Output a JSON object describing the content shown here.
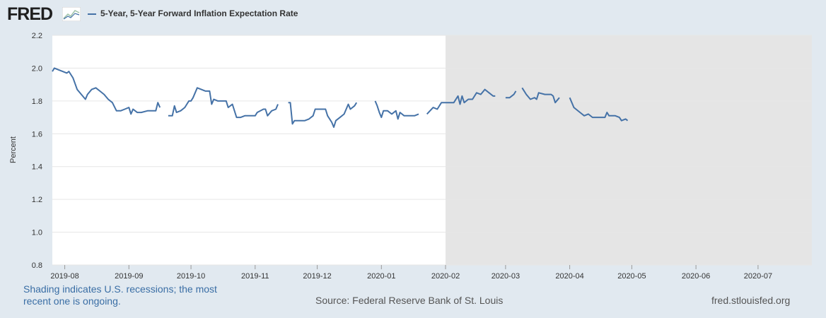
{
  "header": {
    "logo_text": "FRED",
    "logo_icon": "fred-graph-icon"
  },
  "footer": {
    "shading_note": "Shading indicates U.S. recessions; the most recent one is ongoing.",
    "source": "Source: Federal Reserve Bank of St. Louis",
    "url": "fred.stlouisfed.org"
  },
  "colors": {
    "series": "#4572a7",
    "recession_shade": "#e5e5e5",
    "background": "#e1e9f0",
    "plot_background": "#ffffff",
    "gridline": "#e6e6e6",
    "link_text": "#3a6ea5"
  },
  "chart_data": {
    "type": "line",
    "title": "",
    "xlabel": "",
    "ylabel": "Percent",
    "ylim": [
      0.8,
      2.2
    ],
    "yticks": [
      "0.8",
      "1.0",
      "1.2",
      "1.4",
      "1.6",
      "1.8",
      "2.0",
      "2.2"
    ],
    "xlim": [
      "2019-07-26",
      "2020-07-27"
    ],
    "xticks": [
      {
        "date": "2019-08-01",
        "label": "2019-08"
      },
      {
        "date": "2019-09-01",
        "label": "2019-09"
      },
      {
        "date": "2019-10-01",
        "label": "2019-10"
      },
      {
        "date": "2019-11-01",
        "label": "2019-11"
      },
      {
        "date": "2019-12-01",
        "label": "2019-12"
      },
      {
        "date": "2020-01-01",
        "label": "2020-01"
      },
      {
        "date": "2020-02-01",
        "label": "2020-02"
      },
      {
        "date": "2020-03-01",
        "label": "2020-03"
      },
      {
        "date": "2020-04-01",
        "label": "2020-04"
      },
      {
        "date": "2020-05-01",
        "label": "2020-05"
      },
      {
        "date": "2020-06-01",
        "label": "2020-06"
      },
      {
        "date": "2020-07-01",
        "label": "2020-07"
      }
    ],
    "grid": true,
    "recession_shading": [
      {
        "start": "2020-02-01",
        "end": "2020-07-27"
      }
    ],
    "series": [
      {
        "name": "5-Year, 5-Year Forward Inflation Expectation Rate",
        "segments": [
          [
            [
              "2019-07-26",
              1.98
            ],
            [
              "2019-07-27",
              2.0
            ],
            [
              "2019-07-29",
              1.99
            ],
            [
              "2019-07-31",
              1.98
            ],
            [
              "2019-08-02",
              1.97
            ],
            [
              "2019-08-03",
              1.98
            ],
            [
              "2019-08-05",
              1.94
            ],
            [
              "2019-08-07",
              1.87
            ],
            [
              "2019-08-09",
              1.84
            ],
            [
              "2019-08-11",
              1.81
            ],
            [
              "2019-08-12",
              1.84
            ],
            [
              "2019-08-14",
              1.87
            ],
            [
              "2019-08-16",
              1.88
            ],
            [
              "2019-08-18",
              1.86
            ],
            [
              "2019-08-20",
              1.84
            ],
            [
              "2019-08-22",
              1.81
            ],
            [
              "2019-08-24",
              1.79
            ],
            [
              "2019-08-26",
              1.74
            ],
            [
              "2019-08-28",
              1.74
            ],
            [
              "2019-08-30",
              1.75
            ],
            [
              "2019-09-01",
              1.76
            ],
            [
              "2019-09-02",
              1.72
            ],
            [
              "2019-09-03",
              1.75
            ],
            [
              "2019-09-05",
              1.73
            ],
            [
              "2019-09-07",
              1.73
            ],
            [
              "2019-09-10",
              1.74
            ],
            [
              "2019-09-12",
              1.74
            ],
            [
              "2019-09-14",
              1.74
            ],
            [
              "2019-09-15",
              1.79
            ],
            [
              "2019-09-16",
              1.76
            ]
          ],
          [
            [
              "2019-09-20",
              1.71
            ],
            [
              "2019-09-22",
              1.71
            ],
            [
              "2019-09-23",
              1.77
            ],
            [
              "2019-09-24",
              1.73
            ],
            [
              "2019-09-26",
              1.74
            ],
            [
              "2019-09-28",
              1.76
            ],
            [
              "2019-09-30",
              1.8
            ],
            [
              "2019-10-01",
              1.8
            ],
            [
              "2019-10-02",
              1.82
            ],
            [
              "2019-10-04",
              1.88
            ],
            [
              "2019-10-06",
              1.87
            ],
            [
              "2019-10-08",
              1.86
            ],
            [
              "2019-10-10",
              1.86
            ],
            [
              "2019-10-11",
              1.78
            ],
            [
              "2019-10-12",
              1.81
            ],
            [
              "2019-10-14",
              1.8
            ],
            [
              "2019-10-16",
              1.8
            ],
            [
              "2019-10-18",
              1.8
            ],
            [
              "2019-10-19",
              1.76
            ],
            [
              "2019-10-21",
              1.78
            ],
            [
              "2019-10-23",
              1.7
            ],
            [
              "2019-10-25",
              1.7
            ],
            [
              "2019-10-27",
              1.71
            ],
            [
              "2019-10-30",
              1.71
            ],
            [
              "2019-11-01",
              1.71
            ],
            [
              "2019-11-02",
              1.73
            ],
            [
              "2019-11-05",
              1.75
            ],
            [
              "2019-11-06",
              1.75
            ],
            [
              "2019-11-07",
              1.71
            ],
            [
              "2019-11-09",
              1.74
            ],
            [
              "2019-11-11",
              1.75
            ],
            [
              "2019-11-12",
              1.78
            ]
          ],
          [
            [
              "2019-11-17",
              1.79
            ],
            [
              "2019-11-18",
              1.79
            ],
            [
              "2019-11-19",
              1.66
            ],
            [
              "2019-11-20",
              1.68
            ],
            [
              "2019-11-22",
              1.68
            ],
            [
              "2019-11-25",
              1.68
            ],
            [
              "2019-11-27",
              1.69
            ],
            [
              "2019-11-29",
              1.71
            ],
            [
              "2019-11-30",
              1.75
            ],
            [
              "2019-12-02",
              1.75
            ],
            [
              "2019-12-05",
              1.75
            ],
            [
              "2019-12-06",
              1.71
            ],
            [
              "2019-12-08",
              1.67
            ],
            [
              "2019-12-09",
              1.64
            ],
            [
              "2019-12-10",
              1.68
            ],
            [
              "2019-12-12",
              1.7
            ],
            [
              "2019-12-14",
              1.72
            ],
            [
              "2019-12-16",
              1.78
            ],
            [
              "2019-12-17",
              1.75
            ],
            [
              "2019-12-19",
              1.77
            ],
            [
              "2019-12-20",
              1.79
            ]
          ],
          [
            [
              "2019-12-29",
              1.8
            ],
            [
              "2019-12-30",
              1.77
            ],
            [
              "2019-12-31",
              1.73
            ],
            [
              "2020-01-01",
              1.7
            ],
            [
              "2020-01-02",
              1.74
            ],
            [
              "2020-01-04",
              1.74
            ],
            [
              "2020-01-06",
              1.72
            ],
            [
              "2020-01-08",
              1.74
            ],
            [
              "2020-01-09",
              1.69
            ],
            [
              "2020-01-10",
              1.73
            ],
            [
              "2020-01-12",
              1.71
            ],
            [
              "2020-01-15",
              1.71
            ],
            [
              "2020-01-17",
              1.71
            ],
            [
              "2020-01-19",
              1.72
            ]
          ],
          [
            [
              "2020-01-23",
              1.72
            ],
            [
              "2020-01-26",
              1.76
            ],
            [
              "2020-01-28",
              1.75
            ],
            [
              "2020-01-30",
              1.79
            ],
            [
              "2020-02-02",
              1.79
            ],
            [
              "2020-02-05",
              1.79
            ],
            [
              "2020-02-07",
              1.83
            ],
            [
              "2020-02-08",
              1.78
            ],
            [
              "2020-02-09",
              1.83
            ],
            [
              "2020-02-10",
              1.79
            ],
            [
              "2020-02-12",
              1.81
            ],
            [
              "2020-02-14",
              1.81
            ],
            [
              "2020-02-16",
              1.85
            ],
            [
              "2020-02-18",
              1.84
            ],
            [
              "2020-02-20",
              1.87
            ],
            [
              "2020-02-22",
              1.85
            ],
            [
              "2020-02-24",
              1.83
            ],
            [
              "2020-02-25",
              1.83
            ]
          ],
          [
            [
              "2020-03-01",
              1.82
            ],
            [
              "2020-03-03",
              1.82
            ],
            [
              "2020-03-05",
              1.84
            ],
            [
              "2020-03-06",
              1.86
            ]
          ],
          [
            [
              "2020-03-09",
              1.88
            ],
            [
              "2020-03-11",
              1.84
            ],
            [
              "2020-03-13",
              1.81
            ],
            [
              "2020-03-15",
              1.82
            ],
            [
              "2020-03-16",
              1.81
            ],
            [
              "2020-03-17",
              1.85
            ],
            [
              "2020-03-20",
              1.84
            ],
            [
              "2020-03-23",
              1.84
            ],
            [
              "2020-03-24",
              1.83
            ],
            [
              "2020-03-25",
              1.79
            ],
            [
              "2020-03-27",
              1.82
            ]
          ],
          [
            [
              "2020-04-01",
              1.82
            ],
            [
              "2020-04-03",
              1.76
            ],
            [
              "2020-04-06",
              1.73
            ],
            [
              "2020-04-08",
              1.71
            ],
            [
              "2020-04-10",
              1.72
            ],
            [
              "2020-04-12",
              1.7
            ],
            [
              "2020-04-14",
              1.7
            ],
            [
              "2020-04-16",
              1.7
            ],
            [
              "2020-04-18",
              1.7
            ],
            [
              "2020-04-19",
              1.73
            ],
            [
              "2020-04-20",
              1.71
            ],
            [
              "2020-04-23",
              1.71
            ],
            [
              "2020-04-25",
              1.7
            ],
            [
              "2020-04-26",
              1.68
            ],
            [
              "2020-04-28",
              1.69
            ],
            [
              "2020-04-29",
              1.68
            ]
          ]
        ]
      }
    ]
  }
}
